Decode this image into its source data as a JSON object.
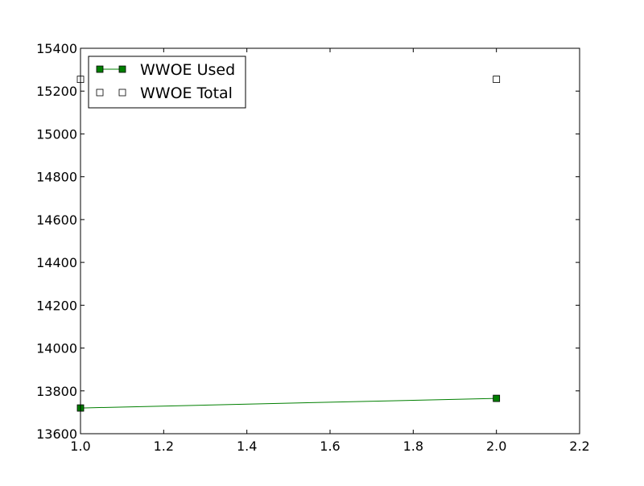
{
  "chart_data": {
    "type": "line",
    "x": [
      1.0,
      2.0
    ],
    "series": [
      {
        "name": "WWOE Used",
        "values": [
          13720,
          13765
        ],
        "style": "line+marker",
        "marker": "square",
        "color": "#007f00",
        "marker_fill": "#007f00"
      },
      {
        "name": "WWOE Total",
        "values": [
          15255,
          15255
        ],
        "style": "marker-only",
        "marker": "square",
        "color": "#000000",
        "marker_fill": "#ffffff"
      }
    ],
    "xlim": [
      1.0,
      2.2
    ],
    "ylim": [
      13600,
      15400
    ],
    "xticks": [
      1.0,
      1.2,
      1.4,
      1.6,
      1.8,
      2.0,
      2.2
    ],
    "xtick_labels": [
      "1.0",
      "1.2",
      "1.4",
      "1.6",
      "1.8",
      "2.0",
      "2.2"
    ],
    "yticks": [
      13600,
      13800,
      14000,
      14200,
      14400,
      14600,
      14800,
      15000,
      15200,
      15400
    ],
    "ytick_labels": [
      "13600",
      "13800",
      "14000",
      "14200",
      "14400",
      "14600",
      "14800",
      "15000",
      "15200",
      "15400"
    ],
    "title": "",
    "xlabel": "",
    "ylabel": "",
    "grid": false,
    "legend_position": "top-left"
  }
}
